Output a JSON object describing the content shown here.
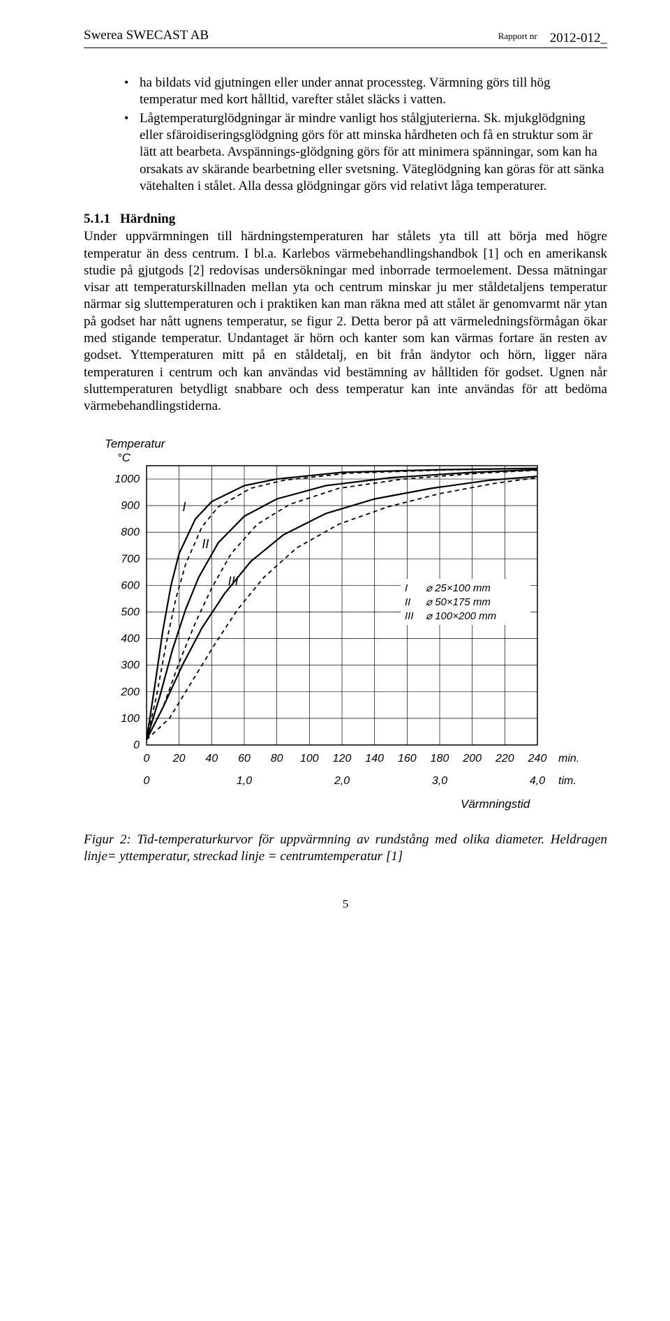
{
  "header": {
    "company": "Swerea SWECAST AB",
    "report_label": "Rapport nr",
    "report_no": "2012-012_"
  },
  "bullets": [
    "ha bildats vid gjutningen eller under annat processteg. Värmning görs till hög temperatur med kort hålltid, varefter stålet släcks i vatten.",
    "Lågtemperaturglödgningar är mindre vanligt hos stålgjuterierna. Sk. mjukglödgning eller sfäroidiseringsglödgning görs för att minska hårdheten och få en struktur som är lätt att bearbeta. Avspännings-glödgning görs för att minimera spänningar, som kan ha orsakats av skärande bearbetning eller svetsning. Väteglödgning kan göras för att sänka vätehalten i stålet. Alla dessa glödgningar görs vid relativt låga temperaturer."
  ],
  "section": {
    "no": "5.1.1",
    "title": "Härdning"
  },
  "paragraph": "Under uppvärmningen till härdningstemperaturen har stålets yta till att börja med högre temperatur än dess centrum. I bl.a. Karlebos värmebehandlingshandbok [1] och en amerikansk studie på gjutgods [2] redovisas undersökningar med inborrade termoelement. Dessa mätningar visar att temperaturskillnaden mellan yta och centrum minskar ju mer ståldetaljens temperatur närmar sig sluttemperaturen och i praktiken kan man räkna med att stålet är genomvarmt när ytan på godset har nått ugnens temperatur, se figur 2. Detta beror på att värmeledningsförmågan ökar med stigande temperatur. Undantaget är hörn och kanter som kan värmas fortare än resten av godset. Yttemperaturen mitt på en ståldetalj, en bit från ändytor och hörn, ligger nära temperaturen i centrum och kan användas vid bestämning av hålltiden för godset. Ugnen når sluttemperaturen betydligt snabbare och dess temperatur kan inte användas för att bedöma värmebehandlingstiderna.",
  "figure": {
    "type": "line",
    "y_label_top": "Temperatur",
    "y_unit": "°C",
    "x_label": "Värmningstid",
    "x_ticks_min": [
      0,
      20,
      40,
      60,
      80,
      100,
      120,
      140,
      160,
      180,
      200,
      220,
      240
    ],
    "x_min_unit": "min.",
    "x_ticks_tim": [
      "0",
      "1,0",
      "2,0",
      "3,0",
      "4,0"
    ],
    "x_tim_unit": "tim.",
    "y_ticks": [
      0,
      100,
      200,
      300,
      400,
      500,
      600,
      700,
      800,
      900,
      1000
    ],
    "xlim": [
      0,
      240
    ],
    "ylim": [
      0,
      1050
    ],
    "grid_color": "#000000",
    "background": "#ffffff",
    "line_color": "#000000",
    "line_width_solid": 2.2,
    "line_width_dash": 1.8,
    "dash_pattern": "6,5",
    "legend": [
      {
        "id": "I",
        "label": "⌀ 25×100 mm"
      },
      {
        "id": "II",
        "label": "⌀ 50×175 mm"
      },
      {
        "id": "III",
        "label": "⌀ 100×200 mm"
      }
    ],
    "series": [
      {
        "id": "I",
        "dashed": false,
        "points": [
          [
            0,
            20
          ],
          [
            5,
            220
          ],
          [
            10,
            430
          ],
          [
            15,
            600
          ],
          [
            20,
            720
          ],
          [
            30,
            850
          ],
          [
            40,
            915
          ],
          [
            60,
            975
          ],
          [
            80,
            1000
          ],
          [
            120,
            1025
          ],
          [
            180,
            1035
          ],
          [
            240,
            1040
          ]
        ]
      },
      {
        "id": "I_d",
        "dashed": true,
        "points": [
          [
            0,
            20
          ],
          [
            6,
            180
          ],
          [
            12,
            380
          ],
          [
            18,
            550
          ],
          [
            24,
            680
          ],
          [
            34,
            820
          ],
          [
            44,
            895
          ],
          [
            64,
            965
          ],
          [
            84,
            995
          ],
          [
            124,
            1022
          ],
          [
            184,
            1034
          ],
          [
            240,
            1040
          ]
        ]
      },
      {
        "id": "II",
        "dashed": false,
        "points": [
          [
            0,
            20
          ],
          [
            8,
            180
          ],
          [
            16,
            360
          ],
          [
            24,
            510
          ],
          [
            32,
            630
          ],
          [
            44,
            760
          ],
          [
            60,
            860
          ],
          [
            80,
            925
          ],
          [
            110,
            975
          ],
          [
            150,
            1005
          ],
          [
            200,
            1025
          ],
          [
            240,
            1035
          ]
        ]
      },
      {
        "id": "II_d",
        "dashed": true,
        "points": [
          [
            0,
            20
          ],
          [
            10,
            140
          ],
          [
            20,
            310
          ],
          [
            30,
            460
          ],
          [
            40,
            590
          ],
          [
            52,
            720
          ],
          [
            68,
            830
          ],
          [
            88,
            905
          ],
          [
            118,
            965
          ],
          [
            158,
            1000
          ],
          [
            205,
            1022
          ],
          [
            240,
            1033
          ]
        ]
      },
      {
        "id": "III",
        "dashed": false,
        "points": [
          [
            0,
            20
          ],
          [
            10,
            140
          ],
          [
            22,
            300
          ],
          [
            34,
            440
          ],
          [
            48,
            570
          ],
          [
            64,
            690
          ],
          [
            84,
            790
          ],
          [
            110,
            870
          ],
          [
            140,
            925
          ],
          [
            175,
            965
          ],
          [
            210,
            995
          ],
          [
            240,
            1010
          ]
        ]
      },
      {
        "id": "III_d",
        "dashed": true,
        "points": [
          [
            0,
            20
          ],
          [
            14,
            100
          ],
          [
            28,
            240
          ],
          [
            42,
            380
          ],
          [
            56,
            510
          ],
          [
            72,
            630
          ],
          [
            92,
            740
          ],
          [
            118,
            830
          ],
          [
            148,
            895
          ],
          [
            180,
            945
          ],
          [
            215,
            985
          ],
          [
            240,
            1005
          ]
        ]
      }
    ],
    "series_label_pos": {
      "I": [
        22,
        880
      ],
      "II": [
        34,
        740
      ],
      "III": [
        50,
        600
      ]
    }
  },
  "caption": "Figur 2: Tid-temperaturkurvor för uppvärmning av rundstång med olika diameter. Heldragen linje= yttemperatur, streckad linje = centrumtemperatur [1]",
  "page_number": "5"
}
